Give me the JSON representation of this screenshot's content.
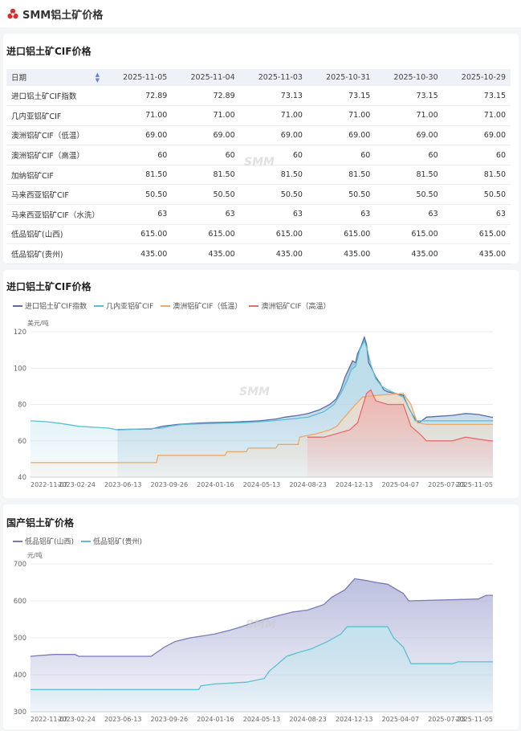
{
  "header": {
    "title": "SMM铝土矿价格"
  },
  "table_section": {
    "title": "进口铝土矿CIF价格",
    "columns": [
      "日期",
      "2025-11-05",
      "2025-11-04",
      "2025-11-03",
      "2025-10-31",
      "2025-10-30",
      "2025-10-29"
    ],
    "rows": [
      {
        "name": "进口铝土矿CIF指数",
        "values": [
          "72.89",
          "72.89",
          "73.13",
          "73.15",
          "73.15",
          "73.15"
        ]
      },
      {
        "name": "几内亚铝矿CIF",
        "values": [
          "71.00",
          "71.00",
          "71.00",
          "71.00",
          "71.00",
          "71.00"
        ]
      },
      {
        "name": "澳洲铝矿CIF（低温）",
        "values": [
          "69.00",
          "69.00",
          "69.00",
          "69.00",
          "69.00",
          "69.00"
        ]
      },
      {
        "name": "澳洲铝矿CIF（高温）",
        "values": [
          "60",
          "60",
          "60",
          "60",
          "60",
          "60"
        ]
      },
      {
        "name": "加纳铝矿CIF",
        "values": [
          "81.50",
          "81.50",
          "81.50",
          "81.50",
          "81.50",
          "81.50"
        ]
      },
      {
        "name": "马来西亚铝矿CIF",
        "values": [
          "50.50",
          "50.50",
          "50.50",
          "50.50",
          "50.50",
          "50.50"
        ]
      },
      {
        "name": "马来西亚铝矿CIF（水洗）",
        "values": [
          "63",
          "63",
          "63",
          "63",
          "63",
          "63"
        ]
      },
      {
        "name": "低品铝矿(山西)",
        "values": [
          "615.00",
          "615.00",
          "615.00",
          "615.00",
          "615.00",
          "615.00"
        ]
      },
      {
        "name": "低品铝矿(贵州)",
        "values": [
          "435.00",
          "435.00",
          "435.00",
          "435.00",
          "435.00",
          "435.00"
        ]
      }
    ]
  },
  "watermark": "SMM",
  "chart_data": [
    {
      "type": "area",
      "title": "进口铝土矿CIF价格",
      "ylabel": "美元/吨",
      "ylim": [
        40,
        120
      ],
      "yticks": [
        40,
        60,
        80,
        100,
        120
      ],
      "x_range": [
        "2022-11-07",
        "2025-11-05"
      ],
      "x_ticks": [
        "2022-11-07",
        "2023-02-24",
        "2023-06-13",
        "2023-09-26",
        "2024-01-16",
        "2024-05-13",
        "2024-08-23",
        "2024-12-13",
        "2025-04-07",
        "2025-07-23",
        "2025-11-05"
      ],
      "grid": true,
      "legend_position": "top-left",
      "series": [
        {
          "name": "进口铝土矿CIF指数",
          "color": "#5b6aa8",
          "fill": "#8fb2d4",
          "points": [
            [
              "2023-06-01",
              66.2
            ],
            [
              "2023-08-20",
              66.5
            ],
            [
              "2023-09-15",
              68
            ],
            [
              "2023-10-20",
              69
            ],
            [
              "2023-11-20",
              69.5
            ],
            [
              "2024-01-01",
              70
            ],
            [
              "2024-03-01",
              70.3
            ],
            [
              "2024-05-01",
              71
            ],
            [
              "2024-06-10",
              72
            ],
            [
              "2024-07-01",
              73
            ],
            [
              "2024-08-01",
              74
            ],
            [
              "2024-08-25",
              75
            ],
            [
              "2024-09-20",
              77
            ],
            [
              "2024-10-15",
              80
            ],
            [
              "2024-10-30",
              83
            ],
            [
              "2024-11-10",
              88
            ],
            [
              "2024-11-20",
              95
            ],
            [
              "2024-11-30",
              100
            ],
            [
              "2024-12-08",
              104
            ],
            [
              "2024-12-15",
              103
            ],
            [
              "2024-12-20",
              108
            ],
            [
              "2024-12-28",
              112
            ],
            [
              "2025-01-05",
              117
            ],
            [
              "2025-01-10",
              113
            ],
            [
              "2025-01-15",
              103
            ],
            [
              "2025-01-22",
              100
            ],
            [
              "2025-02-01",
              95
            ],
            [
              "2025-02-10",
              92
            ],
            [
              "2025-02-20",
              88
            ],
            [
              "2025-03-01",
              87
            ],
            [
              "2025-03-20",
              86
            ],
            [
              "2025-04-07",
              85
            ],
            [
              "2025-04-20",
              78
            ],
            [
              "2025-05-05",
              72
            ],
            [
              "2025-05-15",
              70
            ],
            [
              "2025-06-01",
              73
            ],
            [
              "2025-07-01",
              73.5
            ],
            [
              "2025-08-01",
              74
            ],
            [
              "2025-09-01",
              75
            ],
            [
              "2025-10-01",
              74.5
            ],
            [
              "2025-10-29",
              73.15
            ],
            [
              "2025-11-05",
              72.89
            ]
          ]
        },
        {
          "name": "几内亚铝矿CIF",
          "color": "#5bbfd1",
          "fill": "#c2e5ee",
          "points": [
            [
              "2022-11-07",
              71
            ],
            [
              "2022-12-15",
              70.5
            ],
            [
              "2023-01-20",
              69.5
            ],
            [
              "2023-03-01",
              68
            ],
            [
              "2023-05-10",
              67
            ],
            [
              "2023-06-01",
              66
            ],
            [
              "2023-09-15",
              67
            ],
            [
              "2023-10-01",
              68
            ],
            [
              "2023-11-01",
              69
            ],
            [
              "2024-01-01",
              69.5
            ],
            [
              "2024-04-01",
              70
            ],
            [
              "2024-06-01",
              71
            ],
            [
              "2024-07-15",
              72
            ],
            [
              "2024-08-25",
              73
            ],
            [
              "2024-10-01",
              76
            ],
            [
              "2024-10-25",
              80
            ],
            [
              "2024-11-10",
              86
            ],
            [
              "2024-11-25",
              93
            ],
            [
              "2024-12-05",
              99
            ],
            [
              "2024-12-15",
              101
            ],
            [
              "2024-12-25",
              110
            ],
            [
              "2025-01-05",
              115
            ],
            [
              "2025-01-12",
              110
            ],
            [
              "2025-01-20",
              102
            ],
            [
              "2025-02-01",
              94
            ],
            [
              "2025-02-15",
              90
            ],
            [
              "2025-03-01",
              88
            ],
            [
              "2025-03-20",
              86
            ],
            [
              "2025-04-07",
              84
            ],
            [
              "2025-04-25",
              76
            ],
            [
              "2025-05-05",
              71
            ],
            [
              "2025-06-01",
              71
            ],
            [
              "2025-11-05",
              71
            ]
          ]
        },
        {
          "name": "澳洲铝矿CIF（低温）",
          "color": "#e8a96a",
          "fill": "#f3dcc6",
          "points": [
            [
              "2022-11-07",
              48
            ],
            [
              "2023-09-01",
              48
            ],
            [
              "2023-09-05",
              52
            ],
            [
              "2024-02-10",
              52
            ],
            [
              "2024-02-15",
              54
            ],
            [
              "2024-04-01",
              54
            ],
            [
              "2024-04-05",
              56
            ],
            [
              "2024-06-10",
              56
            ],
            [
              "2024-06-15",
              58
            ],
            [
              "2024-08-01",
              58
            ],
            [
              "2024-08-05",
              62
            ],
            [
              "2024-09-15",
              64
            ],
            [
              "2024-10-15",
              66
            ],
            [
              "2024-11-01",
              68
            ],
            [
              "2024-11-15",
              72
            ],
            [
              "2024-12-15",
              80
            ],
            [
              "2025-01-01",
              84
            ],
            [
              "2025-02-01",
              85
            ],
            [
              "2025-04-07",
              86
            ],
            [
              "2025-04-25",
              80
            ],
            [
              "2025-05-10",
              70
            ],
            [
              "2025-06-01",
              69
            ],
            [
              "2025-11-05",
              69
            ]
          ]
        },
        {
          "name": "澳洲铝矿CIF（高温）",
          "color": "#e46d6d",
          "fill": "#efb1b1",
          "points": [
            [
              "2024-08-23",
              62
            ],
            [
              "2024-10-01",
              62
            ],
            [
              "2024-11-01",
              64
            ],
            [
              "2024-12-01",
              66
            ],
            [
              "2024-12-20",
              70
            ],
            [
              "2025-01-10",
              86
            ],
            [
              "2025-01-20",
              88
            ],
            [
              "2025-02-01",
              82
            ],
            [
              "2025-03-01",
              80
            ],
            [
              "2025-04-07",
              80
            ],
            [
              "2025-04-25",
              68
            ],
            [
              "2025-05-15",
              64
            ],
            [
              "2025-06-01",
              60
            ],
            [
              "2025-08-01",
              60
            ],
            [
              "2025-09-01",
              62
            ],
            [
              "2025-10-29",
              60
            ],
            [
              "2025-11-05",
              60
            ]
          ]
        }
      ]
    },
    {
      "type": "area",
      "title": "国产铝土矿价格",
      "ylabel": "元/吨",
      "ylim": [
        300,
        700
      ],
      "yticks": [
        300,
        400,
        500,
        600,
        700
      ],
      "x_range": [
        "2022-11-07",
        "2025-11-05"
      ],
      "x_ticks": [
        "2022-11-07",
        "2023-02-24",
        "2023-06-13",
        "2023-09-26",
        "2024-01-16",
        "2024-05-13",
        "2024-08-23",
        "2024-12-13",
        "2025-04-07",
        "2025-07-23",
        "2025-11-05"
      ],
      "grid": true,
      "legend_position": "top-left",
      "series": [
        {
          "name": "低品铝矿(山西)",
          "color": "#7b7bb6",
          "fill": "#b5b8db",
          "points": [
            [
              "2022-11-07",
              450
            ],
            [
              "2023-01-01",
              455
            ],
            [
              "2023-02-20",
              455
            ],
            [
              "2023-03-01",
              450
            ],
            [
              "2023-08-20",
              450
            ],
            [
              "2023-09-01",
              460
            ],
            [
              "2023-09-20",
              475
            ],
            [
              "2023-10-15",
              490
            ],
            [
              "2023-11-20",
              500
            ],
            [
              "2024-01-16",
              510
            ],
            [
              "2024-02-20",
              520
            ],
            [
              "2024-03-20",
              530
            ],
            [
              "2024-04-15",
              540
            ],
            [
              "2024-05-13",
              550
            ],
            [
              "2024-06-15",
              560
            ],
            [
              "2024-07-20",
              570
            ],
            [
              "2024-08-23",
              575
            ],
            [
              "2024-10-01",
              590
            ],
            [
              "2024-10-20",
              610
            ],
            [
              "2024-11-20",
              630
            ],
            [
              "2024-12-13",
              660
            ],
            [
              "2025-01-10",
              655
            ],
            [
              "2025-02-01",
              650
            ],
            [
              "2025-03-01",
              645
            ],
            [
              "2025-04-07",
              620
            ],
            [
              "2025-04-20",
              600
            ],
            [
              "2025-10-01",
              605
            ],
            [
              "2025-10-20",
              615
            ],
            [
              "2025-11-05",
              615
            ]
          ]
        },
        {
          "name": "低品铝矿(贵州)",
          "color": "#5bbfd1",
          "fill": "#c2e5ee",
          "points": [
            [
              "2022-11-07",
              360
            ],
            [
              "2023-12-10",
              360
            ],
            [
              "2023-12-15",
              370
            ],
            [
              "2024-01-16",
              375
            ],
            [
              "2024-04-01",
              380
            ],
            [
              "2024-05-13",
              390
            ],
            [
              "2024-05-25",
              410
            ],
            [
              "2024-06-15",
              430
            ],
            [
              "2024-07-05",
              450
            ],
            [
              "2024-08-01",
              460
            ],
            [
              "2024-09-01",
              470
            ],
            [
              "2024-10-10",
              490
            ],
            [
              "2024-11-10",
              510
            ],
            [
              "2024-11-25",
              530
            ],
            [
              "2025-03-01",
              530
            ],
            [
              "2025-03-15",
              500
            ],
            [
              "2025-04-07",
              475
            ],
            [
              "2025-04-25",
              430
            ],
            [
              "2025-08-01",
              430
            ],
            [
              "2025-08-15",
              435
            ],
            [
              "2025-11-05",
              435
            ]
          ]
        }
      ]
    }
  ]
}
